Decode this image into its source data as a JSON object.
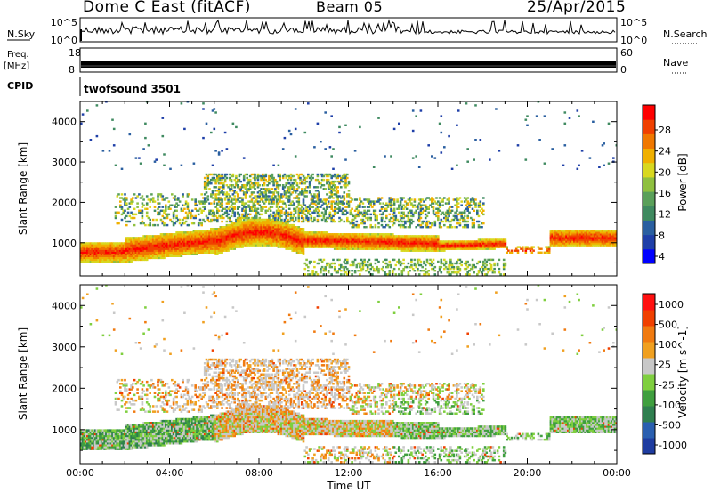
{
  "header": {
    "title": "Dome C East (fitACF)",
    "beam": "Beam 05",
    "date": "25/Apr/2015"
  },
  "info_panels": {
    "nsky": {
      "label": "N.Sky",
      "ticks": [
        "10^5",
        "10^0"
      ],
      "right_label": "N.Search",
      "right_ticks": [
        "10^5",
        "10^0"
      ]
    },
    "freq": {
      "label_top": "Freq.",
      "label_bottom": "[MHz]",
      "ticks": [
        "18",
        "8"
      ],
      "right_label": "Nave",
      "right_ticks": [
        "60",
        "0"
      ]
    },
    "cpid": {
      "label": "CPID",
      "program": "twofsound 3501"
    }
  },
  "chart_data": [
    {
      "type": "heatmap",
      "name": "power",
      "ylabel": "Slant Range [km]",
      "xlabel": "",
      "x_ticks": [
        "00:00",
        "04:00",
        "08:00",
        "12:00",
        "16:00",
        "20:00",
        "00:00"
      ],
      "y_ticks": [
        1000,
        2000,
        3000,
        4000
      ],
      "ylim": [
        180,
        4500
      ],
      "xlim_hours": [
        0,
        24
      ],
      "colorbar": {
        "label": "Power [dB]",
        "ticks": [
          "28",
          "24",
          "20",
          "16",
          "12",
          "8",
          "4"
        ],
        "colors": [
          "#0000ff",
          "#1f3fa8",
          "#2a5fa0",
          "#3f8a60",
          "#5aa05a",
          "#8fc040",
          "#d8d820",
          "#f0b000",
          "#f07800",
          "#f04000",
          "#ff0000"
        ]
      }
    },
    {
      "type": "heatmap",
      "name": "velocity",
      "ylabel": "Slant Range [km]",
      "xlabel": "Time UT",
      "x_ticks": [
        "00:00",
        "04:00",
        "08:00",
        "12:00",
        "16:00",
        "20:00",
        "00:00"
      ],
      "y_ticks": [
        1000,
        2000,
        3000,
        4000
      ],
      "ylim": [
        180,
        4500
      ],
      "xlim_hours": [
        0,
        24
      ],
      "colorbar": {
        "label": "Velocity [m s^-1]",
        "ticks": [
          "1000",
          "500",
          "100",
          "25",
          "-25",
          "-100",
          "-500",
          "-1000"
        ],
        "colors": [
          "#1e3ca0",
          "#2a5fb0",
          "#2f7f4f",
          "#3f9f3f",
          "#7fcf3f",
          "#c8c8c8",
          "#f0a020",
          "#f07a10",
          "#f04000",
          "#ff1010"
        ]
      }
    }
  ]
}
